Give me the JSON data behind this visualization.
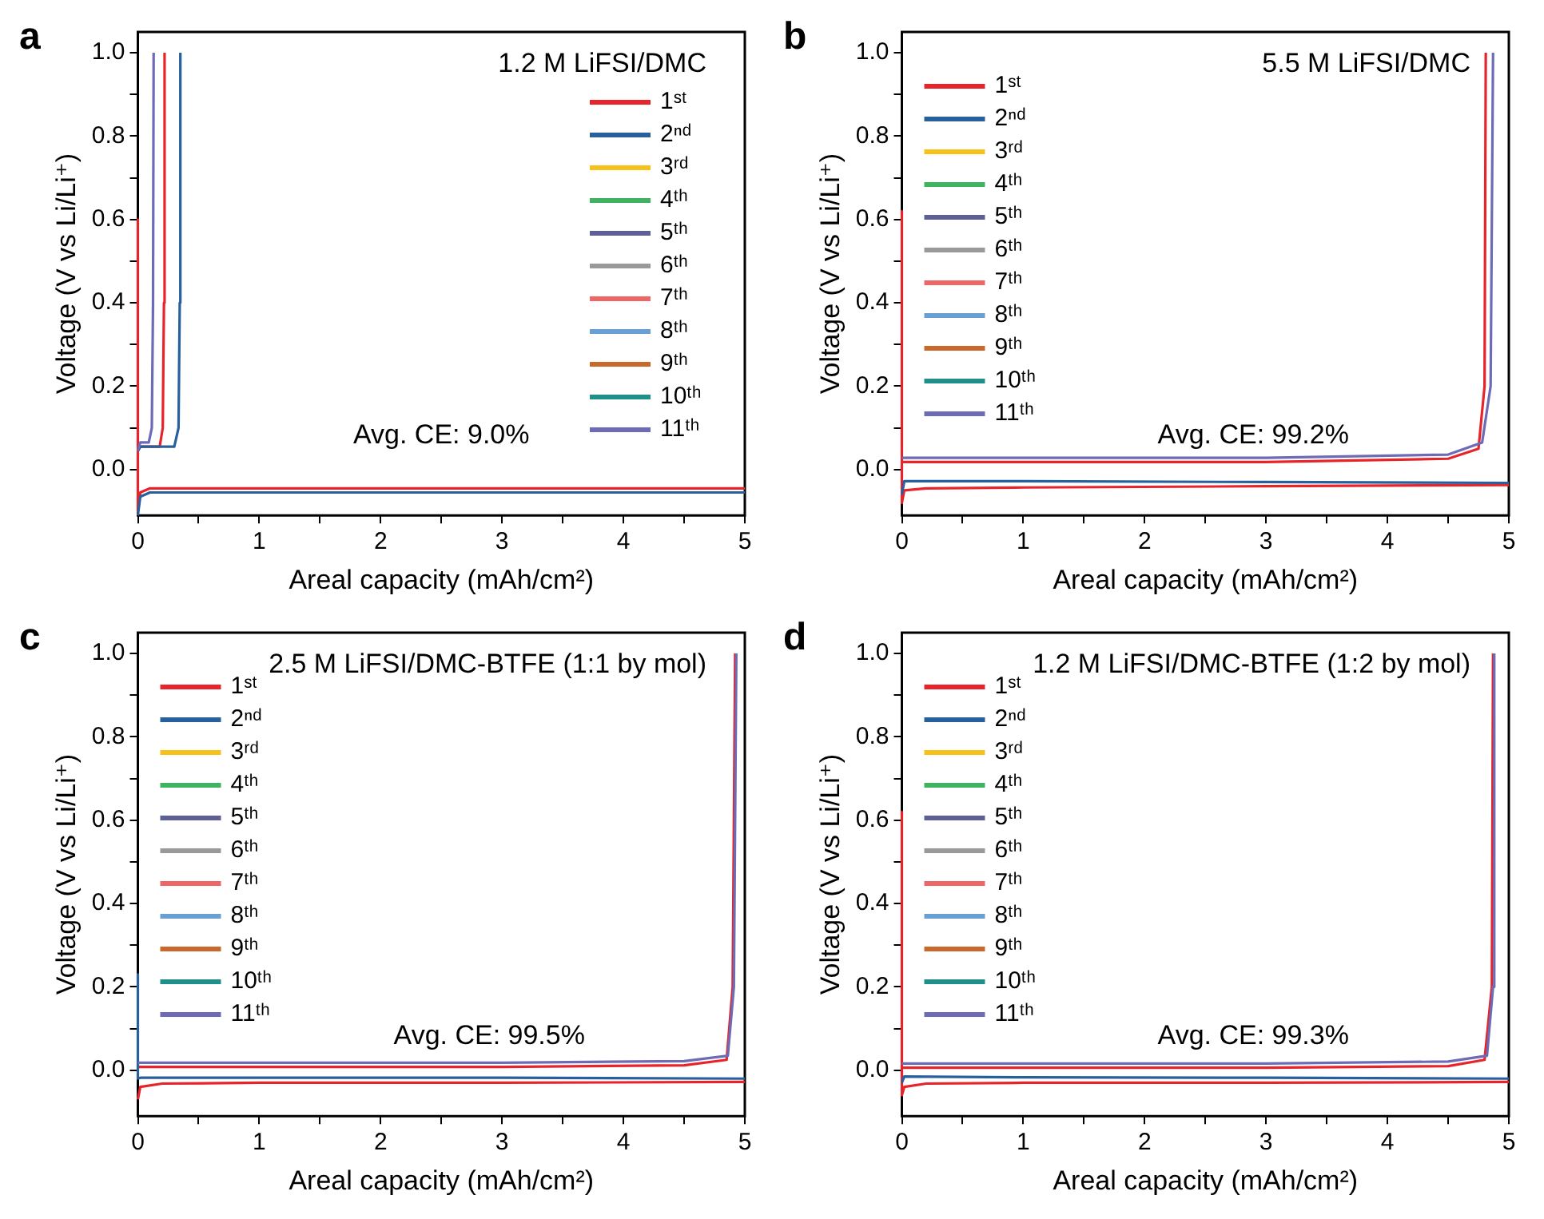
{
  "chart_data": [
    {
      "type": "line",
      "title": "1.2 M LiFSI/DMC",
      "xlabel": "Areal capacity (mAh/cm²)",
      "ylabel": "Voltage (V vs Li/Li⁺)",
      "annotations": [
        "a",
        "Avg. CE: 9.0%"
      ],
      "xlim": [
        0,
        5
      ],
      "ylim": [
        -0.11,
        1.05
      ],
      "xticks": [
        0,
        {
          "value": 0.5,
          "label": null
        },
        1,
        {
          "value": 1.5,
          "label": null
        },
        2,
        {
          "value": 2.5,
          "label": null
        },
        3,
        {
          "value": 3.5,
          "label": null
        },
        4,
        {
          "value": 4.5,
          "label": null
        },
        5
      ],
      "yticks": [
        {
          "value": 0,
          "label": "0.0"
        },
        {
          "value": 0.1,
          "label": null
        },
        0.2,
        {
          "value": 0.3,
          "label": null
        },
        0.4,
        {
          "value": 0.5,
          "label": null
        },
        0.6,
        {
          "value": 0.7,
          "label": null
        },
        0.8,
        {
          "value": 0.9,
          "label": null
        },
        {
          "value": 1,
          "label": "1.0"
        }
      ],
      "legend": "right",
      "marker": "none",
      "series": [
        {
          "name": "1ˢᵗ",
          "color": "#e8242b",
          "x": [
            0,
            0,
            0.02,
            0.1,
            1,
            3,
            5,
            null,
            0,
            0.02,
            0.18,
            0.205,
            0.215,
            0.22
          ],
          "values": [
            0.6,
            -0.1,
            -0.055,
            -0.045,
            -0.045,
            -0.045,
            -0.045,
            null,
            0.045,
            0.055,
            0.055,
            0.1,
            0.4,
            1.0
          ]
        },
        {
          "name": "2ⁿᵈ",
          "color": "#27609c",
          "x": [
            0,
            0.02,
            0.1,
            1,
            3,
            5,
            null,
            0,
            0.02,
            0.3,
            0.335,
            0.345,
            0.35
          ],
          "values": [
            -0.11,
            -0.065,
            -0.055,
            -0.055,
            -0.055,
            -0.055,
            null,
            0.045,
            0.055,
            0.055,
            0.1,
            0.4,
            1.0
          ]
        },
        {
          "name": "3ʳᵈ",
          "color": "#f7c11a"
        },
        {
          "name": "4ᵗʰ",
          "color": "#3fb35f"
        },
        {
          "name": "5ᵗʰ",
          "color": "#5d5f9b"
        },
        {
          "name": "6ᵗʰ",
          "color": "#999999"
        },
        {
          "name": "7ᵗʰ",
          "color": "#ee6666"
        },
        {
          "name": "8ᵗʰ",
          "color": "#6a9fd4"
        },
        {
          "name": "9ᵗʰ",
          "color": "#c8682a"
        },
        {
          "name": "10ᵗʰ",
          "color": "#1f9089"
        },
        {
          "name": "11ᵗʰ",
          "color": "#6d6bb5",
          "x": [
            0,
            0.02,
            0.09,
            0.115,
            0.125,
            0.13
          ],
          "values": [
            0.045,
            0.065,
            0.065,
            0.1,
            0.4,
            1.0
          ]
        }
      ]
    },
    {
      "type": "line",
      "title": "5.5 M LiFSI/DMC",
      "xlabel": "Areal capacity (mAh/cm²)",
      "ylabel": "Voltage (V vs Li/Li⁺)",
      "annotations": [
        "b",
        "Avg. CE: 99.2%"
      ],
      "xlim": [
        0,
        5
      ],
      "ylim": [
        -0.11,
        1.05
      ],
      "xticks": [
        0,
        {
          "value": 0.5,
          "label": null
        },
        1,
        {
          "value": 1.5,
          "label": null
        },
        2,
        {
          "value": 2.5,
          "label": null
        },
        3,
        {
          "value": 3.5,
          "label": null
        },
        4,
        {
          "value": 4.5,
          "label": null
        },
        5
      ],
      "yticks": [
        {
          "value": 0,
          "label": "0.0"
        },
        {
          "value": 0.1,
          "label": null
        },
        0.2,
        {
          "value": 0.3,
          "label": null
        },
        0.4,
        {
          "value": 0.5,
          "label": null
        },
        0.6,
        {
          "value": 0.7,
          "label": null
        },
        0.8,
        {
          "value": 0.9,
          "label": null
        },
        {
          "value": 1,
          "label": "1.0"
        }
      ],
      "legend": "left",
      "marker": "none",
      "series": [
        {
          "name": "1ˢᵗ",
          "color": "#e8242b",
          "x": [
            0,
            0,
            0.02,
            0.2,
            1,
            3,
            5,
            null,
            0,
            0.05,
            1,
            3,
            4.5,
            4.75,
            4.8,
            4.81
          ],
          "values": [
            0.62,
            -0.08,
            -0.05,
            -0.045,
            -0.043,
            -0.04,
            -0.037,
            null,
            0.018,
            0.018,
            0.018,
            0.018,
            0.026,
            0.05,
            0.2,
            1.0
          ]
        },
        {
          "name": "2ⁿᵈ",
          "color": "#27609c",
          "x": [
            0,
            0.02,
            1,
            3,
            5
          ],
          "values": [
            -0.06,
            -0.028,
            -0.028,
            -0.03,
            -0.032
          ]
        },
        {
          "name": "3ʳᵈ",
          "color": "#f7c11a"
        },
        {
          "name": "4ᵗʰ",
          "color": "#3fb35f"
        },
        {
          "name": "5ᵗʰ",
          "color": "#5d5f9b"
        },
        {
          "name": "6ᵗʰ",
          "color": "#999999"
        },
        {
          "name": "7ᵗʰ",
          "color": "#ee6666"
        },
        {
          "name": "8ᵗʰ",
          "color": "#6a9fd4"
        },
        {
          "name": "9ᵗʰ",
          "color": "#c8682a"
        },
        {
          "name": "10ᵗʰ",
          "color": "#1f9089"
        },
        {
          "name": "11ᵗʰ",
          "color": "#6d6bb5",
          "x": [
            0,
            0.05,
            1,
            3,
            4.5,
            4.78,
            4.85,
            4.87
          ],
          "values": [
            0.028,
            0.028,
            0.028,
            0.028,
            0.036,
            0.065,
            0.2,
            1.0
          ]
        }
      ]
    },
    {
      "type": "line",
      "title": "2.5 M LiFSI/DMC-BTFE (1:1 by mol)",
      "xlabel": "Areal capacity (mAh/cm²)",
      "ylabel": "Voltage (V vs Li/Li⁺)",
      "annotations": [
        "c",
        "Avg. CE: 99.5%"
      ],
      "xlim": [
        0,
        5
      ],
      "ylim": [
        -0.11,
        1.05
      ],
      "xticks": [
        0,
        {
          "value": 0.5,
          "label": null
        },
        1,
        {
          "value": 1.5,
          "label": null
        },
        2,
        {
          "value": 2.5,
          "label": null
        },
        3,
        {
          "value": 3.5,
          "label": null
        },
        4,
        {
          "value": 4.5,
          "label": null
        },
        5
      ],
      "yticks": [
        {
          "value": 0,
          "label": "0.0"
        },
        {
          "value": 0.1,
          "label": null
        },
        0.2,
        {
          "value": 0.3,
          "label": null
        },
        0.4,
        {
          "value": 0.5,
          "label": null
        },
        0.6,
        {
          "value": 0.7,
          "label": null
        },
        0.8,
        {
          "value": 0.9,
          "label": null
        },
        {
          "value": 1,
          "label": "1.0"
        }
      ],
      "legend": "left",
      "marker": "none",
      "series": [
        {
          "name": "1ˢᵗ",
          "color": "#e8242b",
          "x": [
            0,
            0.02,
            0.2,
            1,
            3,
            5,
            null,
            0,
            0.05,
            1,
            3,
            4.5,
            4.85,
            4.9,
            4.92
          ],
          "values": [
            -0.07,
            -0.04,
            -0.032,
            -0.03,
            -0.03,
            -0.028,
            null,
            0.008,
            0.008,
            0.008,
            0.008,
            0.012,
            0.025,
            0.2,
            1.0
          ]
        },
        {
          "name": "2ⁿᵈ",
          "color": "#27609c",
          "x": [
            0,
            0,
            0.02,
            1,
            3,
            5
          ],
          "values": [
            0.23,
            -0.02,
            -0.018,
            -0.018,
            -0.018,
            -0.02
          ]
        },
        {
          "name": "3ʳᵈ",
          "color": "#f7c11a"
        },
        {
          "name": "4ᵗʰ",
          "color": "#3fb35f"
        },
        {
          "name": "5ᵗʰ",
          "color": "#5d5f9b"
        },
        {
          "name": "6ᵗʰ",
          "color": "#999999"
        },
        {
          "name": "7ᵗʰ",
          "color": "#ee6666"
        },
        {
          "name": "8ᵗʰ",
          "color": "#6a9fd4"
        },
        {
          "name": "9ᵗʰ",
          "color": "#c8682a"
        },
        {
          "name": "10ᵗʰ",
          "color": "#1f9089"
        },
        {
          "name": "11ᵗʰ",
          "color": "#6d6bb5",
          "x": [
            0,
            0.05,
            1,
            3,
            4.5,
            4.86,
            4.91,
            4.93
          ],
          "values": [
            0.018,
            0.018,
            0.018,
            0.018,
            0.022,
            0.035,
            0.2,
            1.0
          ]
        }
      ]
    },
    {
      "type": "line",
      "title": "1.2 M LiFSI/DMC-BTFE (1:2 by mol)",
      "xlabel": "Areal capacity (mAh/cm²)",
      "ylabel": "Voltage (V vs Li/Li⁺)",
      "annotations": [
        "d",
        "Avg. CE: 99.3%"
      ],
      "xlim": [
        0,
        5
      ],
      "ylim": [
        -0.11,
        1.05
      ],
      "xticks": [
        0,
        {
          "value": 0.5,
          "label": null
        },
        1,
        {
          "value": 1.5,
          "label": null
        },
        2,
        {
          "value": 2.5,
          "label": null
        },
        3,
        {
          "value": 3.5,
          "label": null
        },
        4,
        {
          "value": 4.5,
          "label": null
        },
        5
      ],
      "yticks": [
        {
          "value": 0,
          "label": "0.0"
        },
        {
          "value": 0.1,
          "label": null
        },
        0.2,
        {
          "value": 0.3,
          "label": null
        },
        0.4,
        {
          "value": 0.5,
          "label": null
        },
        0.6,
        {
          "value": 0.7,
          "label": null
        },
        0.8,
        {
          "value": 0.9,
          "label": null
        },
        {
          "value": 1,
          "label": "1.0"
        }
      ],
      "legend": "left",
      "marker": "none",
      "series": [
        {
          "name": "1ˢᵗ",
          "color": "#e8242b",
          "x": [
            0,
            0,
            0.02,
            0.2,
            1,
            3,
            5,
            null,
            0,
            0.05,
            1,
            3,
            4.5,
            4.8,
            4.86,
            4.87
          ],
          "values": [
            0.62,
            -0.06,
            -0.04,
            -0.032,
            -0.03,
            -0.03,
            -0.028,
            null,
            0.006,
            0.006,
            0.006,
            0.006,
            0.01,
            0.025,
            0.2,
            1.0
          ]
        },
        {
          "name": "2ⁿᵈ",
          "color": "#27609c",
          "x": [
            0,
            0.02,
            1,
            3,
            5
          ],
          "values": [
            -0.03,
            -0.015,
            -0.017,
            -0.018,
            -0.02
          ]
        },
        {
          "name": "3ʳᵈ",
          "color": "#f7c11a"
        },
        {
          "name": "4ᵗʰ",
          "color": "#3fb35f"
        },
        {
          "name": "5ᵗʰ",
          "color": "#5d5f9b"
        },
        {
          "name": "6ᵗʰ",
          "color": "#999999"
        },
        {
          "name": "7ᵗʰ",
          "color": "#ee6666"
        },
        {
          "name": "8ᵗʰ",
          "color": "#6a9fd4"
        },
        {
          "name": "9ᵗʰ",
          "color": "#c8682a"
        },
        {
          "name": "10ᵗʰ",
          "color": "#1f9089"
        },
        {
          "name": "11ᵗʰ",
          "color": "#6d6bb5",
          "x": [
            0,
            0.05,
            1,
            3,
            4.5,
            4.82,
            4.87,
            4.88
          ],
          "values": [
            0.016,
            0.016,
            0.016,
            0.016,
            0.021,
            0.035,
            0.2,
            1.0
          ]
        }
      ]
    }
  ]
}
